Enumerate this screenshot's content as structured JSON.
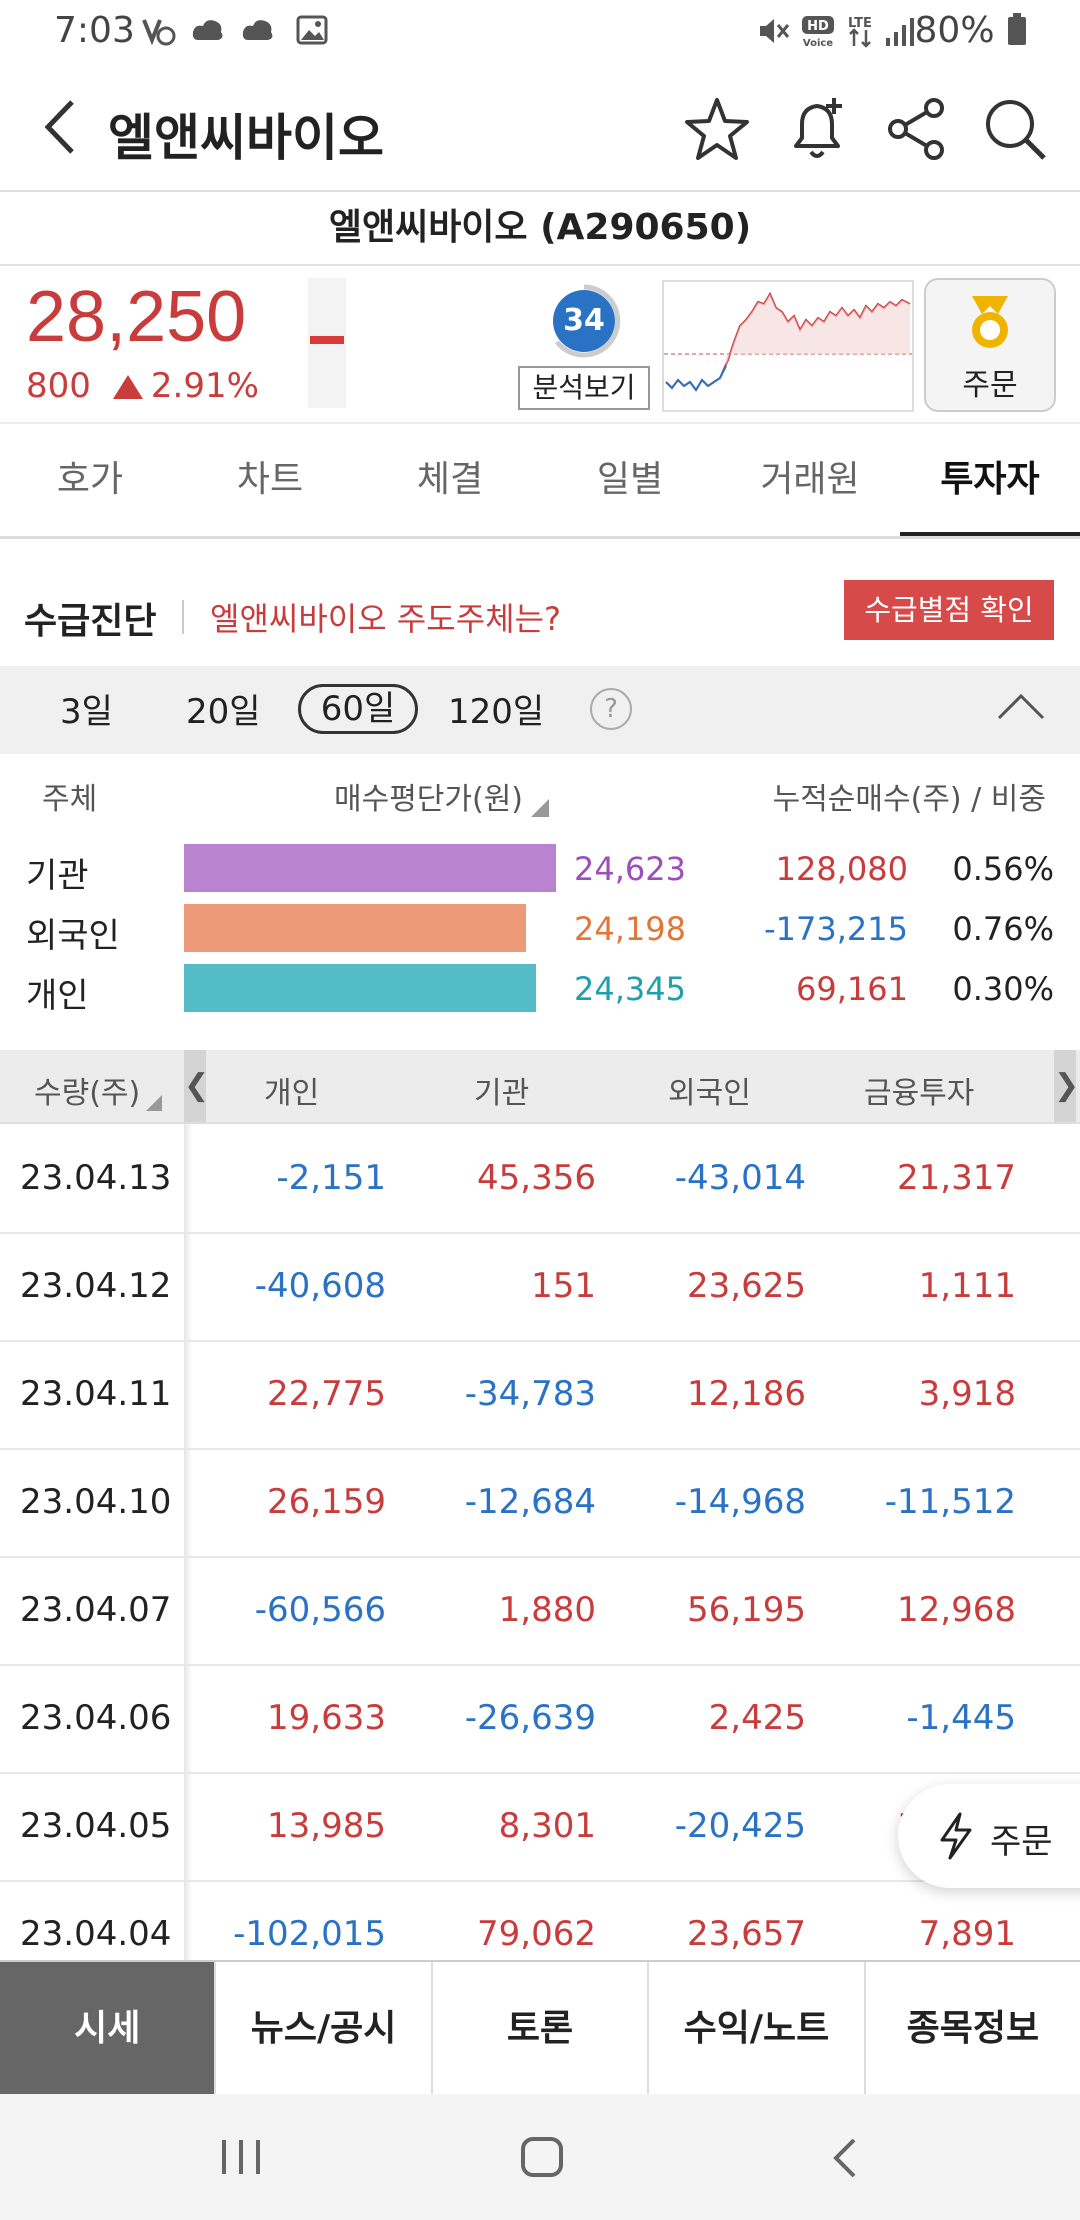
{
  "status_bar": {
    "time": "7:03",
    "battery": "80%",
    "icons": [
      "volte-icon",
      "cloud-icon",
      "cloud-icon",
      "image-icon",
      "mute-icon",
      "hd-voice-icon",
      "lte-icon",
      "signal-icon",
      "battery-icon"
    ]
  },
  "header": {
    "title": "엘앤씨바이오"
  },
  "subtitle": "엘앤씨바이오 (A290650)",
  "price": {
    "current": "28,250",
    "change": "800",
    "change_pct": "2.91%",
    "score": "34",
    "analyze_label": "분석보기",
    "order_label": "주문",
    "color_up": "#c83c3c",
    "color_down": "#2a72c4"
  },
  "tabs": [
    {
      "label": "호가"
    },
    {
      "label": "차트"
    },
    {
      "label": "체결"
    },
    {
      "label": "일별"
    },
    {
      "label": "거래원"
    },
    {
      "label": "투자자",
      "active": true
    }
  ],
  "supply": {
    "heading": "수급진단",
    "question": "엘앤씨바이오 주도주체는?",
    "button": "수급별점 확인"
  },
  "periods": {
    "options": [
      "3일",
      "20일",
      "60일",
      "120일"
    ],
    "selected": "60일"
  },
  "participants": {
    "headers": {
      "subject": "주체",
      "avg_price": "매수평단가(원)",
      "net": "누적순매수(주) / 비중"
    },
    "rows": [
      {
        "name": "기관",
        "avg": "24,623",
        "net": "128,080",
        "pct": "0.56%",
        "color": "#b983d0"
      },
      {
        "name": "외국인",
        "avg": "24,198",
        "net": "-173,215",
        "pct": "0.76%",
        "color": "#ec9a78"
      },
      {
        "name": "개인",
        "avg": "24,345",
        "net": "69,161",
        "pct": "0.30%",
        "color": "#54bcc6"
      }
    ]
  },
  "table": {
    "headers": [
      "수량(주)",
      "개인",
      "기관",
      "외국인",
      "금융투자"
    ],
    "rows": [
      {
        "date": "23.04.13",
        "vals": [
          "-2,151",
          "45,356",
          "-43,014",
          "21,317"
        ]
      },
      {
        "date": "23.04.12",
        "vals": [
          "-40,608",
          "151",
          "23,625",
          "1,111"
        ]
      },
      {
        "date": "23.04.11",
        "vals": [
          "22,775",
          "-34,783",
          "12,186",
          "3,918"
        ]
      },
      {
        "date": "23.04.10",
        "vals": [
          "26,159",
          "-12,684",
          "-14,968",
          "-11,512"
        ]
      },
      {
        "date": "23.04.07",
        "vals": [
          "-60,566",
          "1,880",
          "56,195",
          "12,968"
        ]
      },
      {
        "date": "23.04.06",
        "vals": [
          "19,633",
          "-26,639",
          "2,425",
          "-1,445"
        ]
      },
      {
        "date": "23.04.05",
        "vals": [
          "13,985",
          "8,301",
          "-20,425",
          "16,926"
        ]
      },
      {
        "date": "23.04.04",
        "vals": [
          "-102,015",
          "79,062",
          "23,657",
          "7,891"
        ]
      }
    ]
  },
  "fab": {
    "label": "주문"
  },
  "bottom_nav": [
    {
      "label": "시세",
      "active": true
    },
    {
      "label": "뉴스/공시"
    },
    {
      "label": "토론"
    },
    {
      "label": "수익/노트"
    },
    {
      "label": "종목정보"
    }
  ]
}
